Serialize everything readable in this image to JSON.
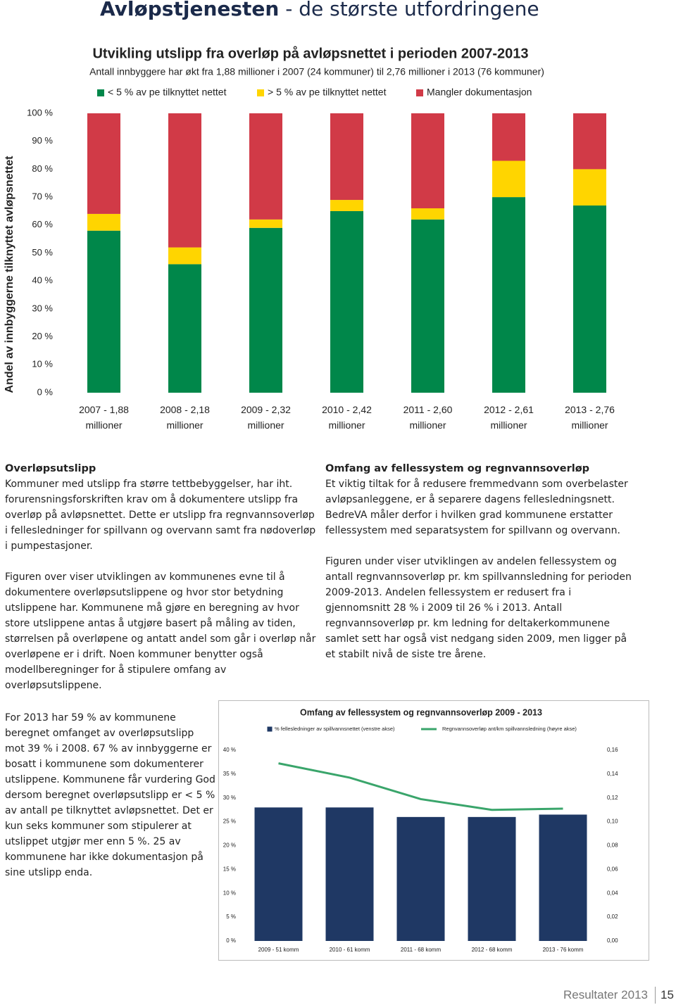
{
  "header": {
    "title": "Avløpstjenesten",
    "subtitle": "- de største utfordringene"
  },
  "chart_data": [
    {
      "type": "stacked_bar",
      "title": "Utvikling utslipp fra overløp på avløpsnettet i perioden 2007-2013",
      "subtitle": "Antall innbyggere har økt fra 1,88 millioner i 2007 (24 kommuner) til 2,76 millioner i 2013 (76 kommuner)",
      "y_label": "Andel av innbyggerne tilknyttet avløpsnettet",
      "categories": [
        "2007 - 1,88 millioner",
        "2008 - 2,18 millioner",
        "2009 - 2,32 millioner",
        "2010 - 2,42 millioner",
        "2011 - 2,60 millioner",
        "2012 - 2,61 millioner",
        "2013 - 2,76 millioner"
      ],
      "series": [
        {
          "name": "< 5 % av pe tilknyttet nettet",
          "color": "#00874a",
          "values": [
            58,
            46,
            59,
            65,
            62,
            70,
            67
          ]
        },
        {
          "name": "> 5 % av pe tilknyttet nettet",
          "color": "#ffd500",
          "values": [
            6,
            6,
            3,
            4,
            4,
            13,
            13
          ]
        },
        {
          "name": "Mangler dokumentasjon",
          "color": "#d13a47",
          "values": [
            36,
            48,
            38,
            31,
            34,
            17,
            20
          ]
        }
      ],
      "ylim": [
        0,
        100
      ],
      "yticks": [
        {
          "value": 0,
          "label": "0 %"
        },
        {
          "value": 10,
          "label": "10 %"
        },
        {
          "value": 20,
          "label": "20 %"
        },
        {
          "value": 30,
          "label": "30 %"
        },
        {
          "value": 40,
          "label": "40 %"
        },
        {
          "value": 50,
          "label": "50 %"
        },
        {
          "value": 60,
          "label": "60 %"
        },
        {
          "value": 70,
          "label": "70 %"
        },
        {
          "value": 80,
          "label": "80 %"
        },
        {
          "value": 90,
          "label": "90 %"
        },
        {
          "value": 100,
          "label": "100 %"
        }
      ],
      "grid": false,
      "legend": "top"
    },
    {
      "type": "combo",
      "title": "Omfang av fellessystem og regnvannsoverløp 2009 - 2013",
      "categories": [
        "2009 - 51 komm",
        "2010 - 61 komm",
        "2011 - 68 komm",
        "2012 - 68 komm",
        "2013 - 76 komm"
      ],
      "series": [
        {
          "name": "% fellesledninger av spillvannsnettet (venstre akse)",
          "type": "bar",
          "color": "#1f3864",
          "values": [
            28,
            28,
            26,
            26,
            26.5
          ]
        },
        {
          "name": "Regnvannsoverløp ant/km spillvannsledning (høyre akse)",
          "type": "line",
          "axis": "y2",
          "color": "#3aa56b",
          "values": [
            0.149,
            0.137,
            0.119,
            0.11,
            0.111
          ]
        }
      ],
      "ylim": [
        0,
        40
      ],
      "yticks": [
        {
          "value": 0,
          "label": "0 %"
        },
        {
          "value": 5,
          "label": "5 %"
        },
        {
          "value": 10,
          "label": "10 %"
        },
        {
          "value": 15,
          "label": "15 %"
        },
        {
          "value": 20,
          "label": "20 %"
        },
        {
          "value": 25,
          "label": "25 %"
        },
        {
          "value": 30,
          "label": "30 %"
        },
        {
          "value": 35,
          "label": "35 %"
        },
        {
          "value": 40,
          "label": "40 %"
        }
      ],
      "y2lim": [
        0,
        0.16
      ],
      "y2ticks": [
        {
          "value": 0,
          "label": "0,00"
        },
        {
          "value": 0.02,
          "label": "0,02"
        },
        {
          "value": 0.04,
          "label": "0,04"
        },
        {
          "value": 0.06,
          "label": "0,06"
        },
        {
          "value": 0.08,
          "label": "0,08"
        },
        {
          "value": 0.1,
          "label": "0,10"
        },
        {
          "value": 0.12,
          "label": "0,12"
        },
        {
          "value": 0.14,
          "label": "0,14"
        },
        {
          "value": 0.16,
          "label": "0,16"
        }
      ],
      "grid": false,
      "legend": "top"
    }
  ],
  "left_column": {
    "heading": "Overløpsutslipp",
    "paragraphs": [
      "Kommuner med utslipp fra større tettbebyggelser, har iht. forurensningsforskriften krav om å dokumentere utslipp fra overløp på avløpsnettet. Dette er utslipp fra regnvannsoverløp i fellesledninger for spillvann og overvann samt fra nødoverløp i pumpestasjoner.",
      "Figuren over viser utviklingen av kommunenes evne til å dokumentere overløpsutslippene og hvor stor betydning utslippene har. Kommunene må gjøre en beregning av hvor store utslippene antas å utgjøre basert på måling av tiden, størrelsen på overløpene og antatt andel som går i overløp når overløpene er i drift. Noen kommuner benytter også modellberegninger for å stipulere omfang av overløpsutslippene."
    ]
  },
  "sidebar_text": "For 2013 har 59 % av kommunene beregnet omfanget av overløpsutslipp mot 39 % i 2008. 67 % av innbyggerne er bosatt i kommunene som dokumenterer utslippene. Kommunene får vurdering God dersom beregnet overløpsutslipp er < 5 % av antall pe tilknyttet avløpsnettet. Det er kun seks kommuner som stipulerer at utslippet utgjør mer enn 5 %. 25 av kommunene har ikke dokumentasjon på sine utslipp enda.",
  "right_column": {
    "heading": "Omfang av fellessystem og regnvannsoverløp",
    "paragraphs": [
      "Et viktig tiltak for å redusere fremmedvann som overbelaster avløpsanleggene, er å separere dagens fellesledningsnett. BedreVA måler derfor i hvilken grad kommunene erstatter fellessystem med separatsystem for spillvann og overvann.",
      "Figuren under viser utviklingen av andelen fellessystem og antall regnvannsoverløp pr. km spillvannsledning for perioden 2009-2013. Andelen fellessystem er redusert fra i gjennomsnitt 28 % i 2009 til 26 % i 2013. Antall regnvannsoverløp pr. km ledning for deltakerkommunene samlet sett har også vist nedgang siden 2009, men ligger på et stabilt nivå de siste tre årene."
    ]
  },
  "footer": {
    "section": "Resultater 2013",
    "page": 15
  }
}
